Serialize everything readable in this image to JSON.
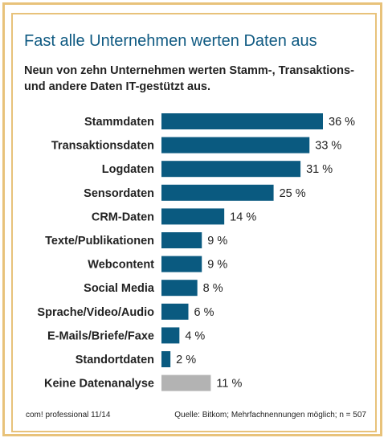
{
  "header": {
    "title": "Fast alle Unternehmen werten Daten aus",
    "subtitle": "Neun von zehn Unternehmen werten Stamm-, Trans­aktions- und andere Daten IT-gestützt aus."
  },
  "footer": {
    "publication": "com! professional 11/14",
    "source": "Quelle: Bitkom; Mehrfachnennungen möglich; n = 507"
  },
  "colors": {
    "bar": "#0a5a80",
    "bar_highlight": "#b3b3b3",
    "frame": "#e8c27a",
    "title": "#0f5a82"
  },
  "chart_data": {
    "type": "bar",
    "orientation": "horizontal",
    "categories": [
      "Stammdaten",
      "Transaktionsdaten",
      "Logdaten",
      "Sensordaten",
      "CRM-Daten",
      "Texte/Publikationen",
      "Webcontent",
      "Social Media",
      "Sprache/Video/Audio",
      "E-Mails/Briefe/Faxe",
      "Standortdaten",
      "Keine Datenanalyse"
    ],
    "values": [
      36,
      33,
      31,
      25,
      14,
      9,
      9,
      8,
      6,
      4,
      2,
      11
    ],
    "value_labels": [
      "36 %",
      "33 %",
      "31 %",
      "25 %",
      "14 %",
      "9 %",
      "9 %",
      "8 %",
      "6 %",
      "4 %",
      "2 %",
      "11 %"
    ],
    "unit": "%",
    "xlim": [
      0,
      36
    ],
    "grey_categories": [
      "Keine Datenanalyse"
    ]
  }
}
